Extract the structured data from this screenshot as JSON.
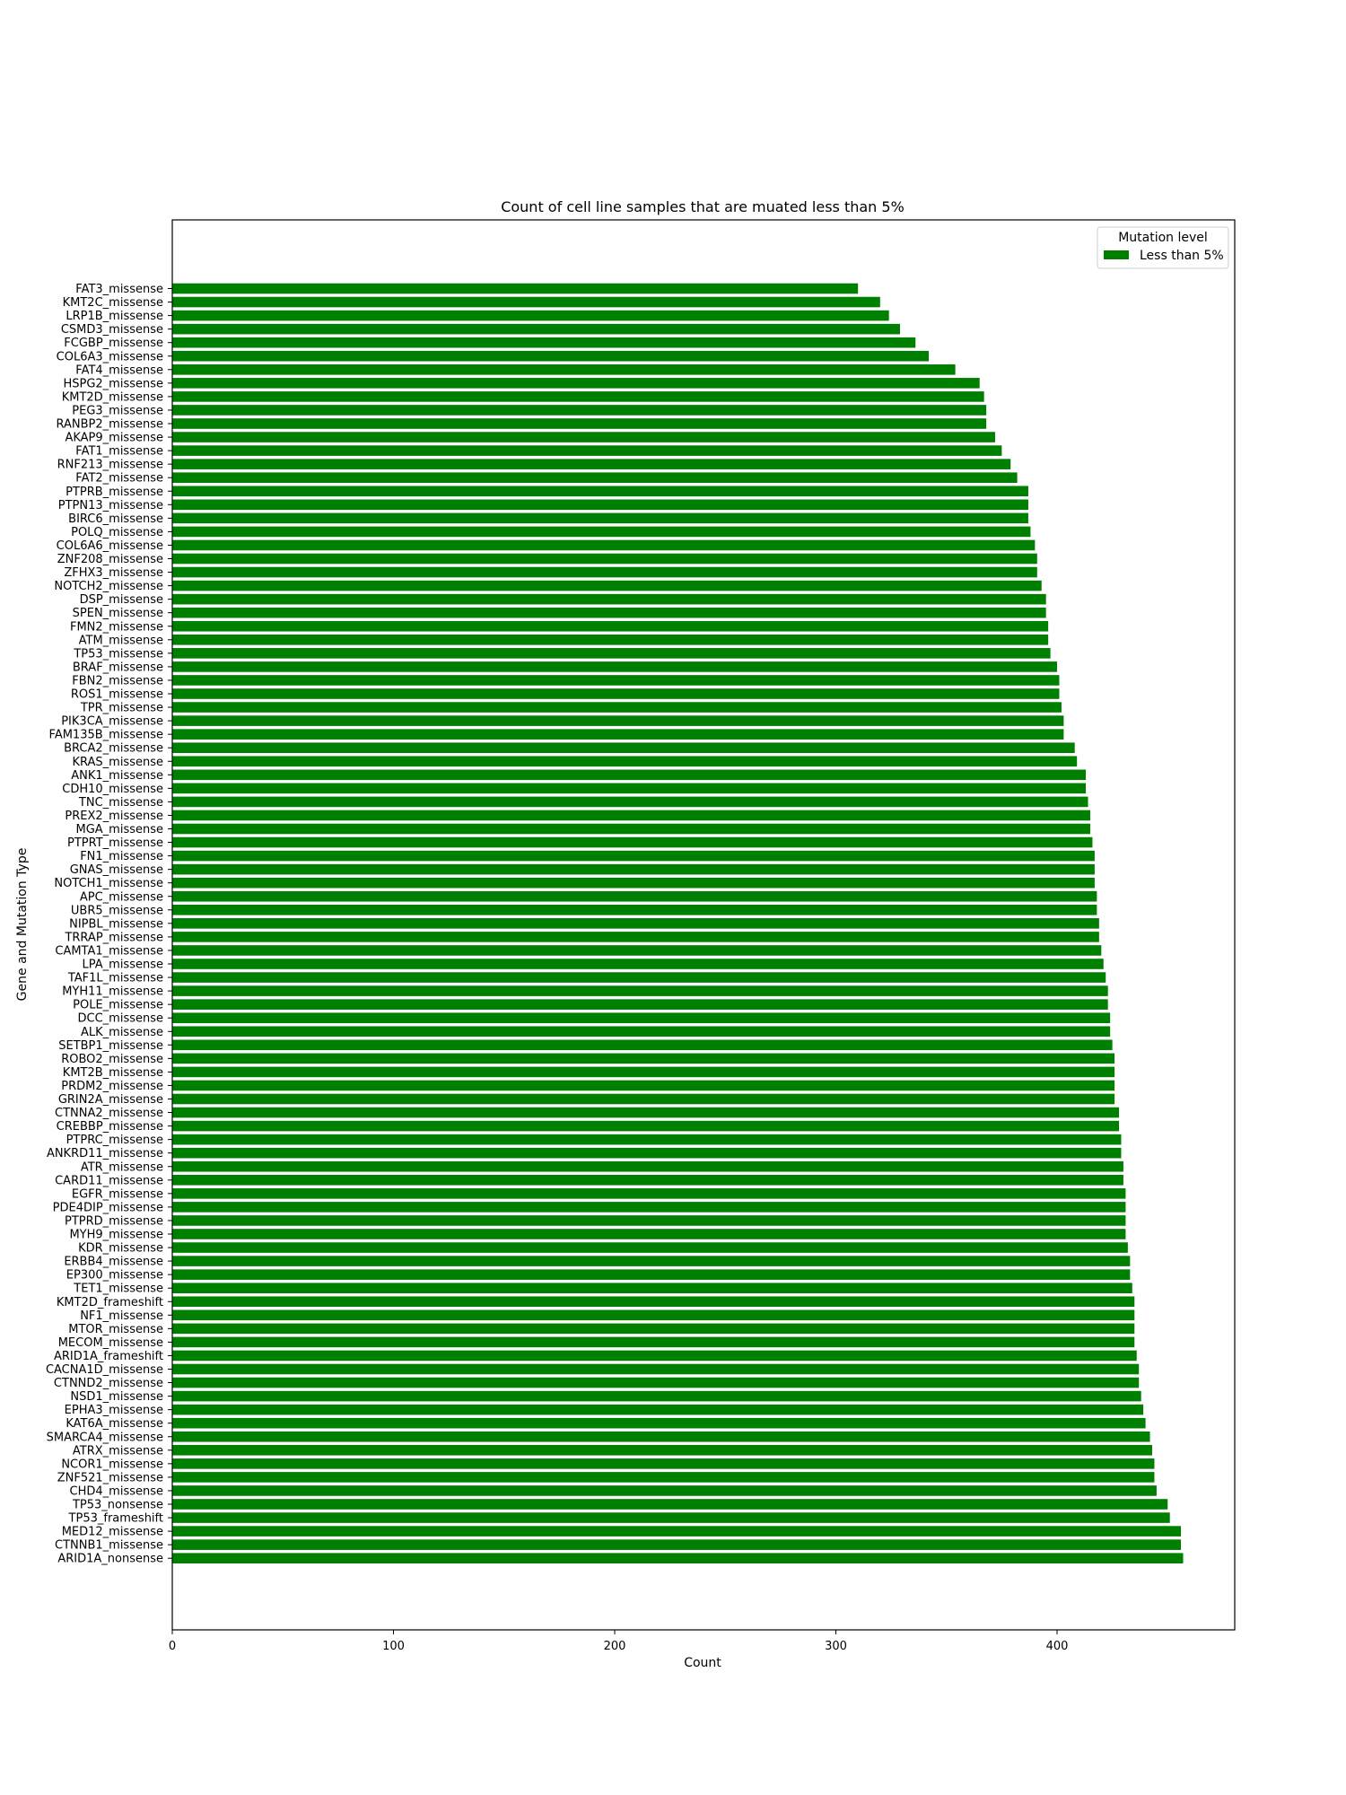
{
  "chart_data": {
    "type": "bar",
    "orientation": "horizontal",
    "title": "Count of cell line samples that are muated less than 5%",
    "xlabel": "Count",
    "ylabel": "Gene and Mutation Type",
    "xlim": [
      0,
      480
    ],
    "xticks": [
      0,
      100,
      200,
      300,
      400
    ],
    "grid": false,
    "legend": {
      "title": "Mutation level",
      "placement": "top-right",
      "entries": [
        {
          "label": "Less than 5%",
          "color": "#008000"
        }
      ]
    },
    "bar_color": "#008000",
    "categories": [
      "FAT3_missense",
      "KMT2C_missense",
      "LRP1B_missense",
      "CSMD3_missense",
      "FCGBP_missense",
      "COL6A3_missense",
      "FAT4_missense",
      "HSPG2_missense",
      "KMT2D_missense",
      "PEG3_missense",
      "RANBP2_missense",
      "AKAP9_missense",
      "FAT1_missense",
      "RNF213_missense",
      "FAT2_missense",
      "PTPRB_missense",
      "PTPN13_missense",
      "BIRC6_missense",
      "POLQ_missense",
      "COL6A6_missense",
      "ZNF208_missense",
      "ZFHX3_missense",
      "NOTCH2_missense",
      "DSP_missense",
      "SPEN_missense",
      "FMN2_missense",
      "ATM_missense",
      "TP53_missense",
      "BRAF_missense",
      "FBN2_missense",
      "ROS1_missense",
      "TPR_missense",
      "PIK3CA_missense",
      "FAM135B_missense",
      "BRCA2_missense",
      "KRAS_missense",
      "ANK1_missense",
      "CDH10_missense",
      "TNC_missense",
      "PREX2_missense",
      "MGA_missense",
      "PTPRT_missense",
      "FN1_missense",
      "GNAS_missense",
      "NOTCH1_missense",
      "APC_missense",
      "UBR5_missense",
      "NIPBL_missense",
      "TRRAP_missense",
      "CAMTA1_missense",
      "LPA_missense",
      "TAF1L_missense",
      "MYH11_missense",
      "POLE_missense",
      "DCC_missense",
      "ALK_missense",
      "SETBP1_missense",
      "ROBO2_missense",
      "KMT2B_missense",
      "PRDM2_missense",
      "GRIN2A_missense",
      "CTNNA2_missense",
      "CREBBP_missense",
      "PTPRC_missense",
      "ANKRD11_missense",
      "ATR_missense",
      "CARD11_missense",
      "EGFR_missense",
      "PDE4DIP_missense",
      "PTPRD_missense",
      "MYH9_missense",
      "KDR_missense",
      "ERBB4_missense",
      "EP300_missense",
      "TET1_missense",
      "KMT2D_frameshift",
      "NF1_missense",
      "MTOR_missense",
      "MECOM_missense",
      "ARID1A_frameshift",
      "CACNA1D_missense",
      "CTNND2_missense",
      "NSD1_missense",
      "EPHA3_missense",
      "KAT6A_missense",
      "SMARCA4_missense",
      "ATRX_missense",
      "NCOR1_missense",
      "ZNF521_missense",
      "CHD4_missense",
      "TP53_nonsense",
      "TP53_frameshift",
      "MED12_missense",
      "CTNNB1_missense",
      "ARID1A_nonsense"
    ],
    "values": [
      310,
      320,
      324,
      329,
      336,
      342,
      354,
      365,
      367,
      368,
      368,
      372,
      375,
      379,
      382,
      387,
      387,
      387,
      388,
      390,
      391,
      391,
      393,
      395,
      395,
      396,
      396,
      397,
      400,
      401,
      401,
      402,
      403,
      403,
      408,
      409,
      413,
      413,
      414,
      415,
      415,
      416,
      417,
      417,
      417,
      418,
      418,
      419,
      419,
      420,
      421,
      422,
      423,
      423,
      424,
      424,
      425,
      426,
      426,
      426,
      426,
      428,
      428,
      429,
      429,
      430,
      430,
      431,
      431,
      431,
      431,
      432,
      433,
      433,
      434,
      435,
      435,
      435,
      435,
      436,
      437,
      437,
      438,
      439,
      440,
      442,
      443,
      444,
      444,
      445,
      450,
      451,
      456,
      456,
      457
    ]
  }
}
